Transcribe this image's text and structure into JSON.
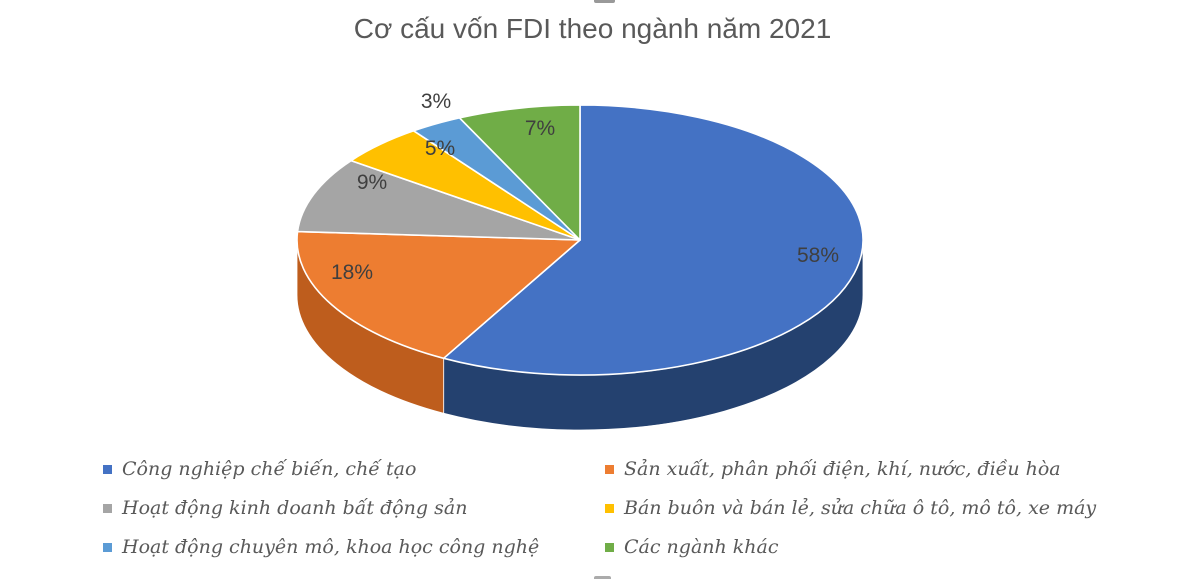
{
  "chart_data": {
    "type": "pie",
    "style": "3d",
    "title": "Cơ cấu vốn FDI theo ngành năm 2021",
    "label_format": "percent",
    "legend_position": "bottom",
    "title_color": "#595959",
    "data_label_color": "#3f3f3f",
    "legend_text_color": "#595959",
    "slices": [
      {
        "label": "Công nghiệp chế biến, chế tạo",
        "value": 58,
        "color": "#4472C4",
        "side_color": "#24416F"
      },
      {
        "label": "Sản xuất, phân phối điện, khí, nước, điều hòa",
        "value": 18,
        "color": "#ED7D31",
        "side_color": "#BE5D1D"
      },
      {
        "label": "Hoạt động kinh doanh bất động sản",
        "value": 9,
        "color": "#A5A5A5",
        "side_color": "#7D7D7D"
      },
      {
        "label": "Bán buôn và bán lẻ, sửa chữa ô tô, mô tô, xe máy",
        "value": 5,
        "color": "#FFC000",
        "side_color": "#BF9000"
      },
      {
        "label": "Hoạt động chuyên mô, khoa học công nghệ",
        "value": 3,
        "color": "#5B9BD5",
        "side_color": "#41729F"
      },
      {
        "label": "Các ngành khác",
        "value": 7,
        "color": "#70AD47",
        "side_color": "#538136"
      }
    ]
  }
}
